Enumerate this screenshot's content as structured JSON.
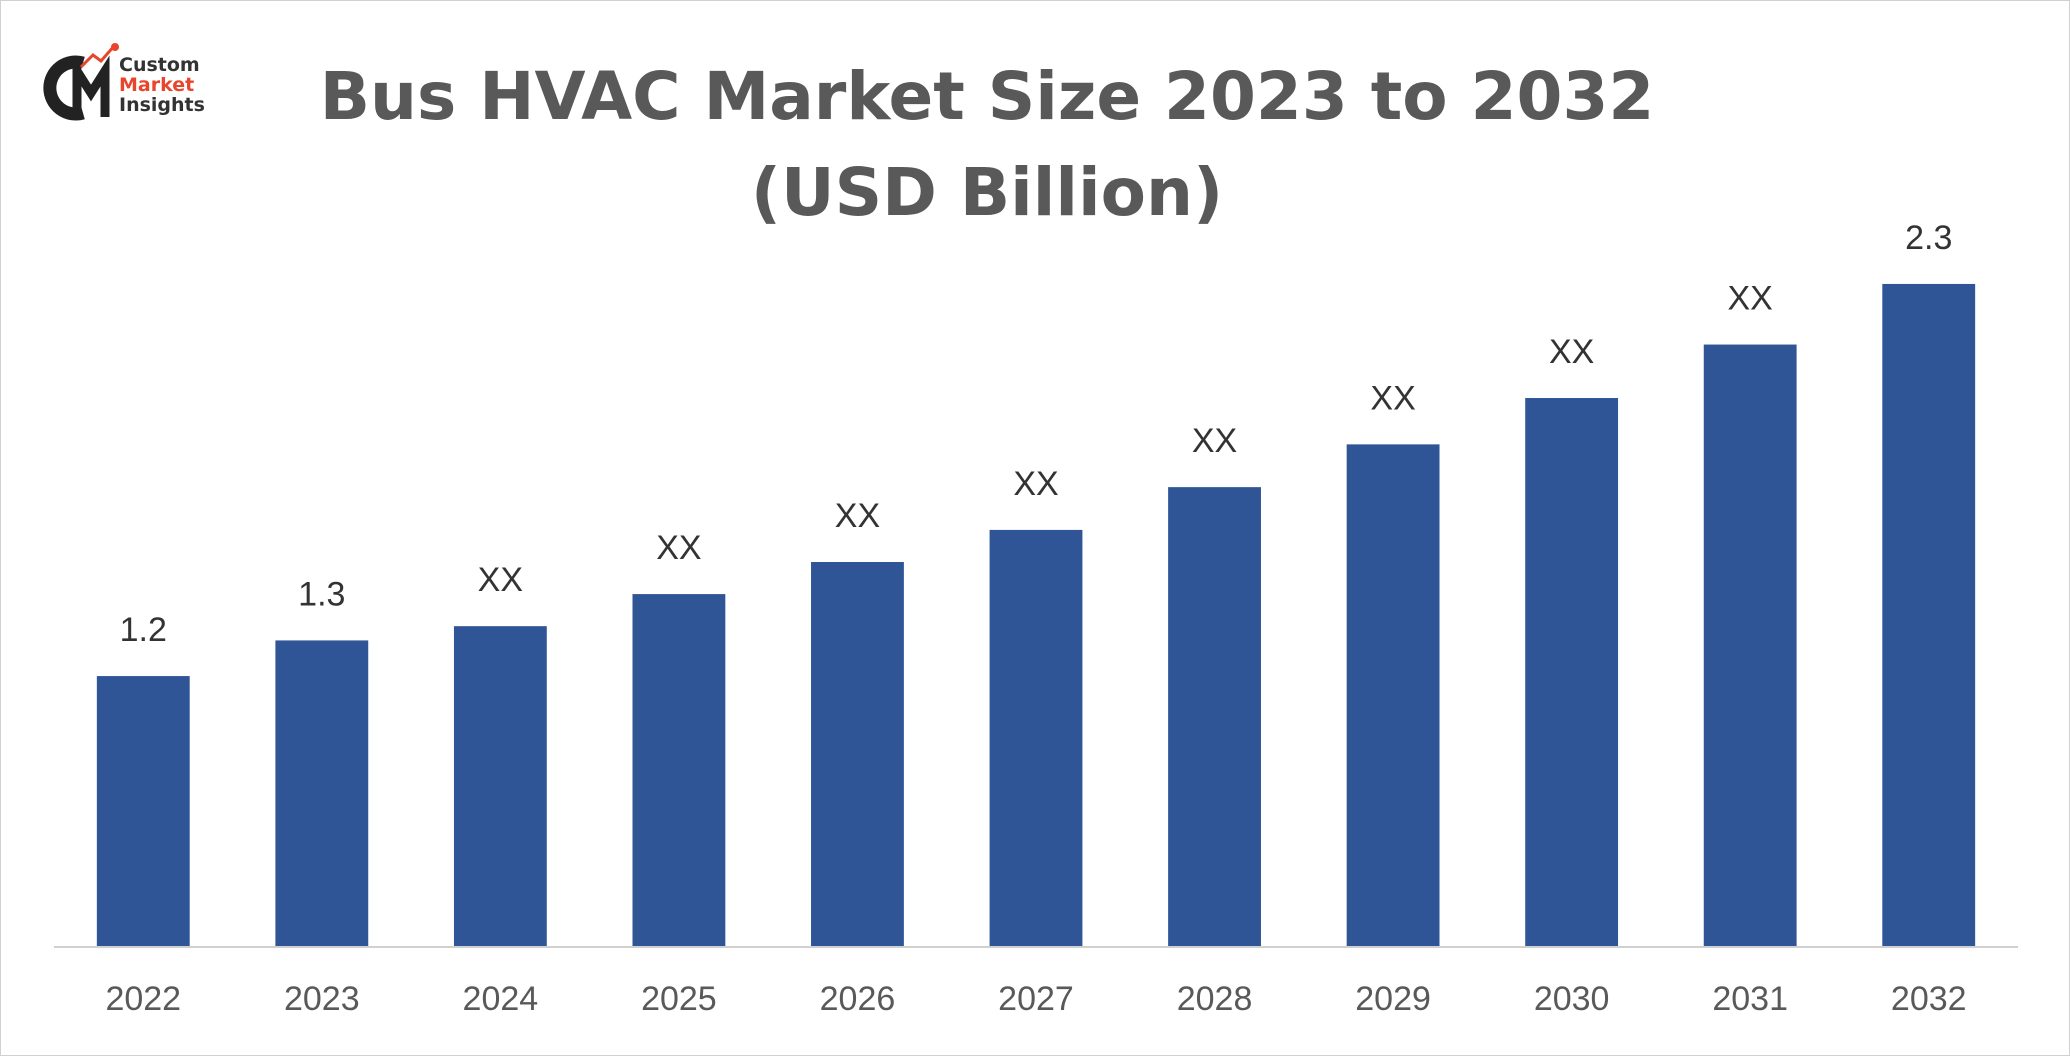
{
  "chart_data": {
    "type": "bar",
    "title": "Bus HVAC Market Size 2023 to 2032 (USD Billion)",
    "logo": {
      "line1": "Custom",
      "line2": "Market",
      "line3": "Insights"
    },
    "categories": [
      "2022",
      "2023",
      "2024",
      "2025",
      "2026",
      "2027",
      "2028",
      "2029",
      "2030",
      "2031",
      "2032"
    ],
    "values": [
      1.2,
      1.3,
      1.34,
      1.43,
      1.52,
      1.61,
      1.73,
      1.85,
      1.98,
      2.13,
      2.3
    ],
    "value_labels": [
      "1.2",
      "1.3",
      "XX",
      "XX",
      "XX",
      "XX",
      "XX",
      "XX",
      "XX",
      "XX",
      "2.3"
    ],
    "color": "#2f5597",
    "ylim": [
      0.44,
      2.6
    ]
  }
}
